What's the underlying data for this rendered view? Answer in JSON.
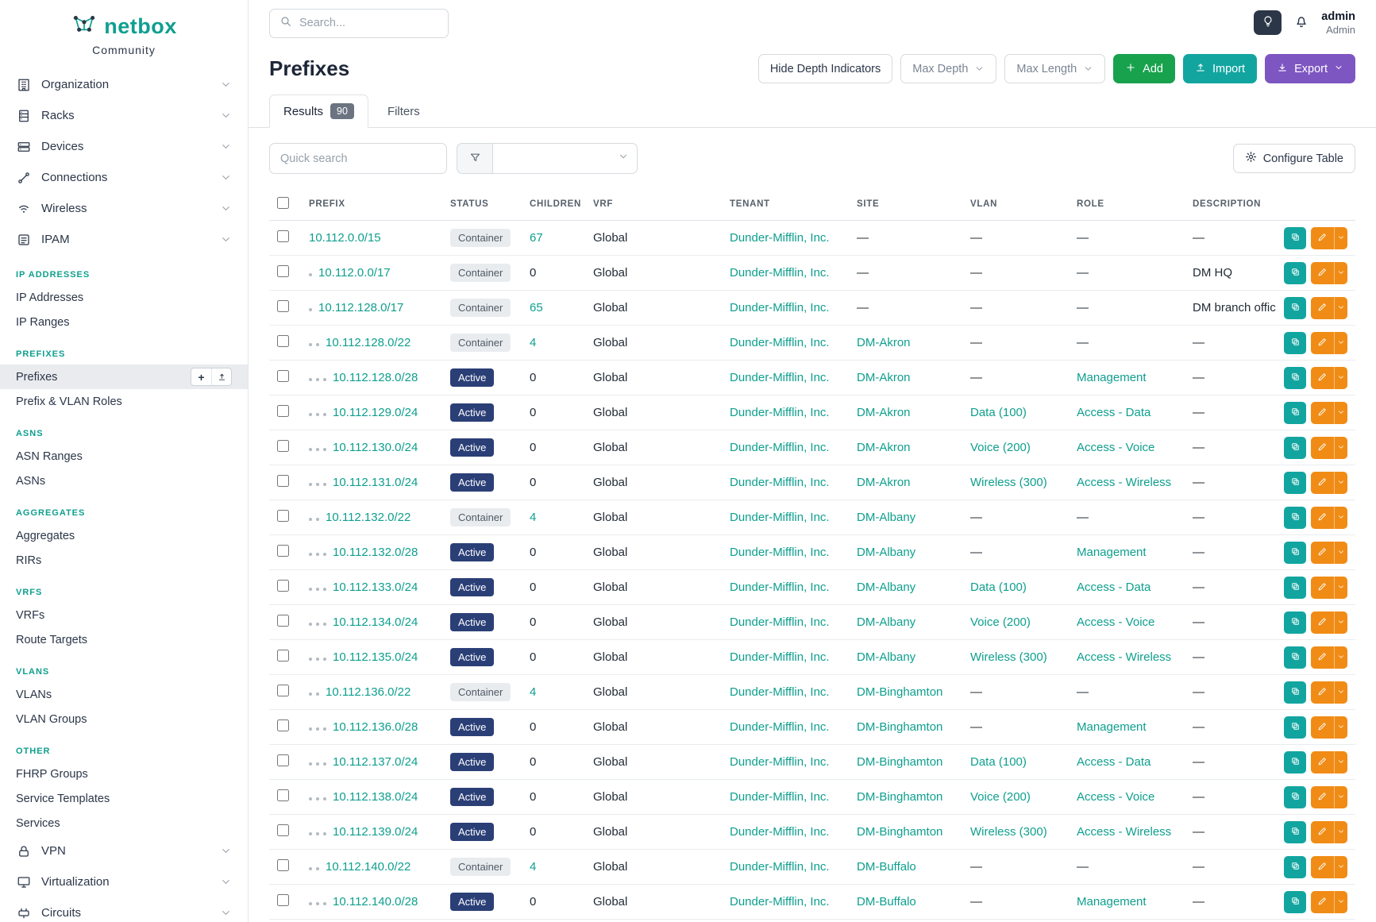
{
  "colors": {
    "accent": "#0e9f8e",
    "navy": "#2b3648",
    "green": "#18a24d",
    "teal-btn": "#12a5a0",
    "purple": "#7e56c2",
    "orange": "#f08c16",
    "badge-active": "#2b3f77",
    "badge-container-bg": "#e9ecef",
    "badge-container-fg": "#4f5a66"
  },
  "brand": {
    "name": "netbox",
    "subtitle": "Community"
  },
  "topbar": {
    "search_placeholder": "Search...",
    "user_name": "admin",
    "user_role": "Admin"
  },
  "sidebar": {
    "top_items": [
      {
        "label": "Organization",
        "icon": "organization-icon"
      },
      {
        "label": "Racks",
        "icon": "racks-icon"
      },
      {
        "label": "Devices",
        "icon": "devices-icon"
      },
      {
        "label": "Connections",
        "icon": "connections-icon"
      },
      {
        "label": "Wireless",
        "icon": "wireless-icon"
      },
      {
        "label": "IPAM",
        "icon": "ipam-icon"
      }
    ],
    "sections": [
      {
        "title": "IP ADDRESSES",
        "items": [
          "IP Addresses",
          "IP Ranges"
        ]
      },
      {
        "title": "PREFIXES",
        "items": [
          "Prefixes",
          "Prefix & VLAN Roles"
        ],
        "active_item": "Prefixes"
      },
      {
        "title": "ASNS",
        "items": [
          "ASN Ranges",
          "ASNs"
        ]
      },
      {
        "title": "AGGREGATES",
        "items": [
          "Aggregates",
          "RIRs"
        ]
      },
      {
        "title": "VRFS",
        "items": [
          "VRFs",
          "Route Targets"
        ]
      },
      {
        "title": "VLANS",
        "items": [
          "VLANs",
          "VLAN Groups"
        ]
      },
      {
        "title": "OTHER",
        "items": [
          "FHRP Groups",
          "Service Templates",
          "Services"
        ]
      }
    ],
    "bottom_items": [
      {
        "label": "VPN",
        "icon": "vpn-icon"
      },
      {
        "label": "Virtualization",
        "icon": "virtualization-icon"
      },
      {
        "label": "Circuits",
        "icon": "circuits-icon"
      }
    ]
  },
  "page": {
    "title": "Prefixes",
    "hide_depth_label": "Hide Depth Indicators",
    "max_depth_label": "Max Depth",
    "max_length_label": "Max Length",
    "add_label": "Add",
    "import_label": "Import",
    "export_label": "Export",
    "tabs": [
      {
        "label": "Results",
        "badge": "90"
      },
      {
        "label": "Filters",
        "badge": ""
      }
    ],
    "quick_search_placeholder": "Quick search",
    "configure_table_label": "Configure Table"
  },
  "table": {
    "columns": [
      "PREFIX",
      "STATUS",
      "CHILDREN",
      "VRF",
      "TENANT",
      "SITE",
      "VLAN",
      "ROLE",
      "DESCRIPTION"
    ],
    "rows": [
      {
        "depth": 0,
        "prefix": "10.112.0.0/15",
        "status": "Container",
        "children": "67",
        "vrf": "Global",
        "tenant": "Dunder-Mifflin, Inc.",
        "site": "—",
        "vlan": "—",
        "role": "—",
        "description": "—"
      },
      {
        "depth": 1,
        "prefix": "10.112.0.0/17",
        "status": "Container",
        "children": "0",
        "vrf": "Global",
        "tenant": "Dunder-Mifflin, Inc.",
        "site": "—",
        "vlan": "—",
        "role": "—",
        "description": "DM HQ"
      },
      {
        "depth": 1,
        "prefix": "10.112.128.0/17",
        "status": "Container",
        "children": "65",
        "vrf": "Global",
        "tenant": "Dunder-Mifflin, Inc.",
        "site": "—",
        "vlan": "—",
        "role": "—",
        "description": "DM branch offices"
      },
      {
        "depth": 2,
        "prefix": "10.112.128.0/22",
        "status": "Container",
        "children": "4",
        "vrf": "Global",
        "tenant": "Dunder-Mifflin, Inc.",
        "site": "DM-Akron",
        "vlan": "—",
        "role": "—",
        "description": "—"
      },
      {
        "depth": 3,
        "prefix": "10.112.128.0/28",
        "status": "Active",
        "children": "0",
        "vrf": "Global",
        "tenant": "Dunder-Mifflin, Inc.",
        "site": "DM-Akron",
        "vlan": "—",
        "role": "Management",
        "description": "—"
      },
      {
        "depth": 3,
        "prefix": "10.112.129.0/24",
        "status": "Active",
        "children": "0",
        "vrf": "Global",
        "tenant": "Dunder-Mifflin, Inc.",
        "site": "DM-Akron",
        "vlan": "Data (100)",
        "role": "Access - Data",
        "description": "—"
      },
      {
        "depth": 3,
        "prefix": "10.112.130.0/24",
        "status": "Active",
        "children": "0",
        "vrf": "Global",
        "tenant": "Dunder-Mifflin, Inc.",
        "site": "DM-Akron",
        "vlan": "Voice (200)",
        "role": "Access - Voice",
        "description": "—"
      },
      {
        "depth": 3,
        "prefix": "10.112.131.0/24",
        "status": "Active",
        "children": "0",
        "vrf": "Global",
        "tenant": "Dunder-Mifflin, Inc.",
        "site": "DM-Akron",
        "vlan": "Wireless (300)",
        "role": "Access - Wireless",
        "description": "—"
      },
      {
        "depth": 2,
        "prefix": "10.112.132.0/22",
        "status": "Container",
        "children": "4",
        "vrf": "Global",
        "tenant": "Dunder-Mifflin, Inc.",
        "site": "DM-Albany",
        "vlan": "—",
        "role": "—",
        "description": "—"
      },
      {
        "depth": 3,
        "prefix": "10.112.132.0/28",
        "status": "Active",
        "children": "0",
        "vrf": "Global",
        "tenant": "Dunder-Mifflin, Inc.",
        "site": "DM-Albany",
        "vlan": "—",
        "role": "Management",
        "description": "—"
      },
      {
        "depth": 3,
        "prefix": "10.112.133.0/24",
        "status": "Active",
        "children": "0",
        "vrf": "Global",
        "tenant": "Dunder-Mifflin, Inc.",
        "site": "DM-Albany",
        "vlan": "Data (100)",
        "role": "Access - Data",
        "description": "—"
      },
      {
        "depth": 3,
        "prefix": "10.112.134.0/24",
        "status": "Active",
        "children": "0",
        "vrf": "Global",
        "tenant": "Dunder-Mifflin, Inc.",
        "site": "DM-Albany",
        "vlan": "Voice (200)",
        "role": "Access - Voice",
        "description": "—"
      },
      {
        "depth": 3,
        "prefix": "10.112.135.0/24",
        "status": "Active",
        "children": "0",
        "vrf": "Global",
        "tenant": "Dunder-Mifflin, Inc.",
        "site": "DM-Albany",
        "vlan": "Wireless (300)",
        "role": "Access - Wireless",
        "description": "—"
      },
      {
        "depth": 2,
        "prefix": "10.112.136.0/22",
        "status": "Container",
        "children": "4",
        "vrf": "Global",
        "tenant": "Dunder-Mifflin, Inc.",
        "site": "DM-Binghamton",
        "vlan": "—",
        "role": "—",
        "description": "—"
      },
      {
        "depth": 3,
        "prefix": "10.112.136.0/28",
        "status": "Active",
        "children": "0",
        "vrf": "Global",
        "tenant": "Dunder-Mifflin, Inc.",
        "site": "DM-Binghamton",
        "vlan": "—",
        "role": "Management",
        "description": "—"
      },
      {
        "depth": 3,
        "prefix": "10.112.137.0/24",
        "status": "Active",
        "children": "0",
        "vrf": "Global",
        "tenant": "Dunder-Mifflin, Inc.",
        "site": "DM-Binghamton",
        "vlan": "Data (100)",
        "role": "Access - Data",
        "description": "—"
      },
      {
        "depth": 3,
        "prefix": "10.112.138.0/24",
        "status": "Active",
        "children": "0",
        "vrf": "Global",
        "tenant": "Dunder-Mifflin, Inc.",
        "site": "DM-Binghamton",
        "vlan": "Voice (200)",
        "role": "Access - Voice",
        "description": "—"
      },
      {
        "depth": 3,
        "prefix": "10.112.139.0/24",
        "status": "Active",
        "children": "0",
        "vrf": "Global",
        "tenant": "Dunder-Mifflin, Inc.",
        "site": "DM-Binghamton",
        "vlan": "Wireless (300)",
        "role": "Access - Wireless",
        "description": "—"
      },
      {
        "depth": 2,
        "prefix": "10.112.140.0/22",
        "status": "Container",
        "children": "4",
        "vrf": "Global",
        "tenant": "Dunder-Mifflin, Inc.",
        "site": "DM-Buffalo",
        "vlan": "—",
        "role": "—",
        "description": "—"
      },
      {
        "depth": 3,
        "prefix": "10.112.140.0/28",
        "status": "Active",
        "children": "0",
        "vrf": "Global",
        "tenant": "Dunder-Mifflin, Inc.",
        "site": "DM-Buffalo",
        "vlan": "—",
        "role": "Management",
        "description": "—"
      }
    ]
  }
}
